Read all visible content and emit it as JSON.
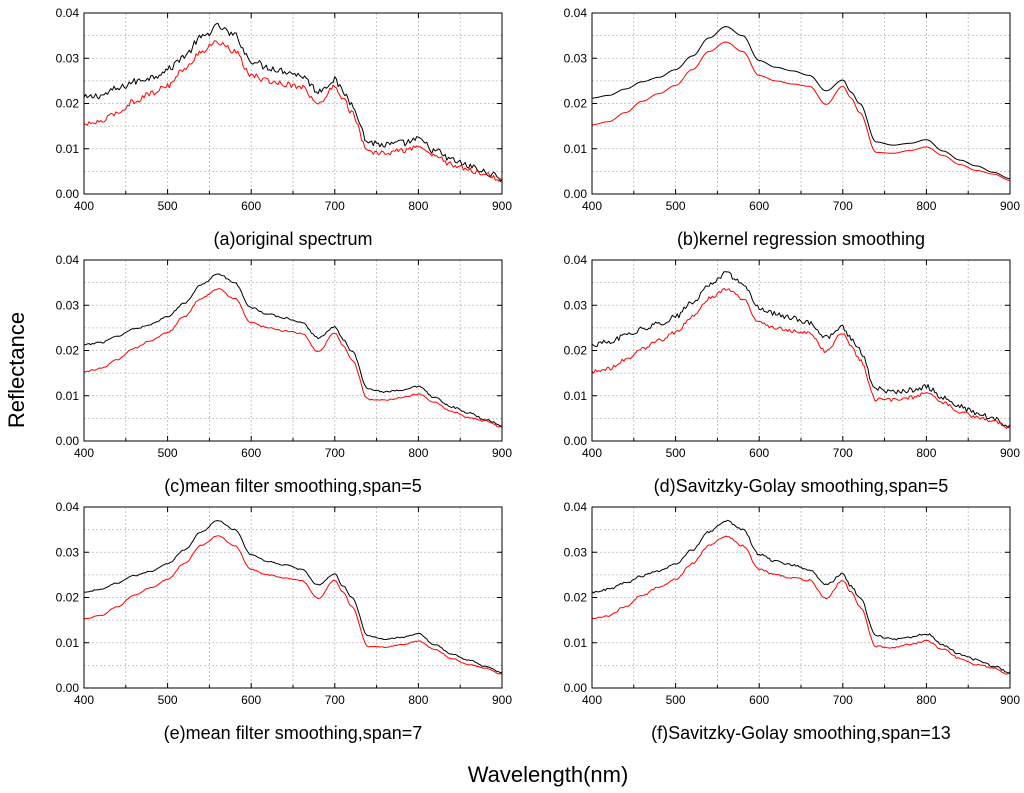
{
  "figure": {
    "ylabel": "Reflectance",
    "xlabel": "Wavelength(nm)"
  },
  "colors": {
    "black_series": "#000000",
    "red_series": "#ff0000",
    "grid": "#b8b8b8"
  },
  "chart_data": [
    {
      "type": "line",
      "title": "(a)original spectrum",
      "xlim": [
        400,
        900
      ],
      "ylim": [
        0,
        0.04
      ],
      "xticks": [
        "400",
        "500",
        "600",
        "700",
        "800",
        "900"
      ],
      "yticks": [
        "0.00",
        "0.01",
        "0.02",
        "0.03",
        "0.04"
      ],
      "x": [
        400,
        420,
        440,
        460,
        480,
        500,
        520,
        540,
        560,
        580,
        600,
        620,
        640,
        660,
        680,
        700,
        710,
        720,
        740,
        760,
        780,
        800,
        820,
        840,
        860,
        880,
        900
      ],
      "series": [
        {
          "name": "black",
          "color": "#000000",
          "noise": 0.0008,
          "values": [
            0.0212,
            0.0218,
            0.0232,
            0.0248,
            0.0258,
            0.0275,
            0.0305,
            0.0345,
            0.037,
            0.035,
            0.0295,
            0.028,
            0.0272,
            0.0262,
            0.0228,
            0.0252,
            0.0225,
            0.02,
            0.0115,
            0.0108,
            0.0112,
            0.012,
            0.0095,
            0.0075,
            0.0062,
            0.0048,
            0.0034
          ]
        },
        {
          "name": "red",
          "color": "#ff0000",
          "noise": 0.0006,
          "values": [
            0.0153,
            0.016,
            0.018,
            0.0205,
            0.0222,
            0.024,
            0.0275,
            0.0315,
            0.0336,
            0.0315,
            0.0262,
            0.025,
            0.0243,
            0.0238,
            0.0198,
            0.0238,
            0.0212,
            0.018,
            0.0092,
            0.009,
            0.0096,
            0.0104,
            0.0085,
            0.0065,
            0.0052,
            0.0044,
            0.003
          ]
        }
      ]
    },
    {
      "type": "line",
      "title": "(b)kernel regression smoothing",
      "xlim": [
        400,
        900
      ],
      "ylim": [
        0,
        0.04
      ],
      "xticks": [
        "400",
        "500",
        "600",
        "700",
        "800",
        "900"
      ],
      "yticks": [
        "0.00",
        "0.01",
        "0.02",
        "0.03",
        "0.04"
      ],
      "x": [
        400,
        420,
        440,
        460,
        480,
        500,
        520,
        540,
        560,
        580,
        600,
        620,
        640,
        660,
        680,
        700,
        710,
        720,
        740,
        760,
        780,
        800,
        820,
        840,
        860,
        880,
        900
      ],
      "series": [
        {
          "name": "black",
          "color": "#000000",
          "noise": 0,
          "values": [
            0.0212,
            0.0218,
            0.0232,
            0.0248,
            0.0258,
            0.0275,
            0.0305,
            0.0345,
            0.037,
            0.035,
            0.0295,
            0.028,
            0.0272,
            0.0262,
            0.0228,
            0.0252,
            0.0225,
            0.02,
            0.0115,
            0.0108,
            0.0112,
            0.012,
            0.0095,
            0.0075,
            0.0062,
            0.0048,
            0.0034
          ]
        },
        {
          "name": "red",
          "color": "#ff0000",
          "noise": 0,
          "values": [
            0.0153,
            0.016,
            0.018,
            0.0205,
            0.0222,
            0.024,
            0.0275,
            0.0315,
            0.0336,
            0.0315,
            0.0262,
            0.025,
            0.0243,
            0.0238,
            0.0198,
            0.0238,
            0.0212,
            0.018,
            0.0092,
            0.009,
            0.0096,
            0.0104,
            0.0085,
            0.0065,
            0.0052,
            0.0044,
            0.003
          ]
        }
      ]
    },
    {
      "type": "line",
      "title": "(c)mean filter smoothing,span=5",
      "xlim": [
        400,
        900
      ],
      "ylim": [
        0,
        0.04
      ],
      "xticks": [
        "400",
        "500",
        "600",
        "700",
        "800",
        "900"
      ],
      "yticks": [
        "0.00",
        "0.01",
        "0.02",
        "0.03",
        "0.04"
      ],
      "x": [
        400,
        420,
        440,
        460,
        480,
        500,
        520,
        540,
        560,
        580,
        600,
        620,
        640,
        660,
        680,
        700,
        710,
        720,
        740,
        760,
        780,
        800,
        820,
        840,
        860,
        880,
        900
      ],
      "series": [
        {
          "name": "black",
          "color": "#000000",
          "noise": 0.0002,
          "values": [
            0.0212,
            0.0218,
            0.0232,
            0.0248,
            0.0258,
            0.0275,
            0.0305,
            0.0345,
            0.037,
            0.035,
            0.0295,
            0.028,
            0.0272,
            0.0262,
            0.0228,
            0.0252,
            0.0225,
            0.02,
            0.0115,
            0.0108,
            0.0112,
            0.012,
            0.0095,
            0.0075,
            0.0062,
            0.0048,
            0.0034
          ]
        },
        {
          "name": "red",
          "color": "#ff0000",
          "noise": 0.00015,
          "values": [
            0.0153,
            0.016,
            0.018,
            0.0205,
            0.0222,
            0.024,
            0.0275,
            0.0315,
            0.0336,
            0.0315,
            0.0262,
            0.025,
            0.0243,
            0.0238,
            0.0198,
            0.0238,
            0.0212,
            0.018,
            0.0092,
            0.009,
            0.0096,
            0.0104,
            0.0085,
            0.0065,
            0.0052,
            0.0044,
            0.003
          ]
        }
      ]
    },
    {
      "type": "line",
      "title": "(d)Savitzky-Golay smoothing,span=5",
      "xlim": [
        400,
        900
      ],
      "ylim": [
        0,
        0.04
      ],
      "xticks": [
        "400",
        "500",
        "600",
        "700",
        "800",
        "900"
      ],
      "yticks": [
        "0.00",
        "0.01",
        "0.02",
        "0.03",
        "0.04"
      ],
      "x": [
        400,
        420,
        440,
        460,
        480,
        500,
        520,
        540,
        560,
        580,
        600,
        620,
        640,
        660,
        680,
        700,
        710,
        720,
        740,
        760,
        780,
        800,
        820,
        840,
        860,
        880,
        900
      ],
      "series": [
        {
          "name": "black",
          "color": "#000000",
          "noise": 0.0006,
          "values": [
            0.0212,
            0.0218,
            0.0232,
            0.0248,
            0.0258,
            0.0275,
            0.0305,
            0.0345,
            0.037,
            0.035,
            0.0295,
            0.028,
            0.0272,
            0.0262,
            0.0228,
            0.0252,
            0.0225,
            0.02,
            0.0115,
            0.0108,
            0.0112,
            0.012,
            0.0095,
            0.0075,
            0.0062,
            0.0048,
            0.0034
          ]
        },
        {
          "name": "red",
          "color": "#ff0000",
          "noise": 0.0004,
          "values": [
            0.0153,
            0.016,
            0.018,
            0.0205,
            0.0222,
            0.024,
            0.0275,
            0.0315,
            0.0336,
            0.0315,
            0.0262,
            0.025,
            0.0243,
            0.0238,
            0.0198,
            0.0238,
            0.0212,
            0.018,
            0.0092,
            0.009,
            0.0096,
            0.0104,
            0.0085,
            0.0065,
            0.0052,
            0.0044,
            0.003
          ]
        }
      ]
    },
    {
      "type": "line",
      "title": "(e)mean filter smoothing,span=7",
      "xlim": [
        400,
        900
      ],
      "ylim": [
        0,
        0.04
      ],
      "xticks": [
        "400",
        "500",
        "600",
        "700",
        "800",
        "900"
      ],
      "yticks": [
        "0.00",
        "0.01",
        "0.02",
        "0.03",
        "0.04"
      ],
      "x": [
        400,
        420,
        440,
        460,
        480,
        500,
        520,
        540,
        560,
        580,
        600,
        620,
        640,
        660,
        680,
        700,
        710,
        720,
        740,
        760,
        780,
        800,
        820,
        840,
        860,
        880,
        900
      ],
      "series": [
        {
          "name": "black",
          "color": "#000000",
          "noise": 0.00012,
          "values": [
            0.0212,
            0.0218,
            0.0232,
            0.0248,
            0.0258,
            0.0275,
            0.0305,
            0.0345,
            0.037,
            0.035,
            0.0295,
            0.028,
            0.0272,
            0.0262,
            0.0228,
            0.0252,
            0.0225,
            0.02,
            0.0115,
            0.0108,
            0.0112,
            0.012,
            0.0095,
            0.0075,
            0.0062,
            0.0048,
            0.0034
          ]
        },
        {
          "name": "red",
          "color": "#ff0000",
          "noise": 0.0001,
          "values": [
            0.0153,
            0.016,
            0.018,
            0.0205,
            0.0222,
            0.024,
            0.0275,
            0.0315,
            0.0336,
            0.0315,
            0.0262,
            0.025,
            0.0243,
            0.0238,
            0.0198,
            0.0238,
            0.0212,
            0.018,
            0.0092,
            0.009,
            0.0096,
            0.0104,
            0.0085,
            0.0065,
            0.0052,
            0.0044,
            0.003
          ]
        }
      ]
    },
    {
      "type": "line",
      "title": "(f)Savitzky-Golay smoothing,span=13",
      "xlim": [
        400,
        900
      ],
      "ylim": [
        0,
        0.04
      ],
      "xticks": [
        "400",
        "500",
        "600",
        "700",
        "800",
        "900"
      ],
      "yticks": [
        "0.00",
        "0.01",
        "0.02",
        "0.03",
        "0.04"
      ],
      "x": [
        400,
        420,
        440,
        460,
        480,
        500,
        520,
        540,
        560,
        580,
        600,
        620,
        640,
        660,
        680,
        700,
        710,
        720,
        740,
        760,
        780,
        800,
        820,
        840,
        860,
        880,
        900
      ],
      "series": [
        {
          "name": "black",
          "color": "#000000",
          "noise": 0.00025,
          "values": [
            0.0212,
            0.0218,
            0.0232,
            0.0248,
            0.0258,
            0.0275,
            0.0305,
            0.0345,
            0.037,
            0.035,
            0.0295,
            0.028,
            0.0272,
            0.0262,
            0.0228,
            0.0252,
            0.0225,
            0.02,
            0.0115,
            0.0108,
            0.0112,
            0.012,
            0.0095,
            0.0075,
            0.0062,
            0.0048,
            0.0034
          ]
        },
        {
          "name": "red",
          "color": "#ff0000",
          "noise": 0.0002,
          "values": [
            0.0153,
            0.016,
            0.018,
            0.0205,
            0.0222,
            0.024,
            0.0275,
            0.0315,
            0.0336,
            0.0315,
            0.0262,
            0.025,
            0.0243,
            0.0238,
            0.0198,
            0.0238,
            0.0212,
            0.018,
            0.0092,
            0.009,
            0.0096,
            0.0104,
            0.0085,
            0.0065,
            0.0052,
            0.0044,
            0.003
          ]
        }
      ]
    }
  ]
}
